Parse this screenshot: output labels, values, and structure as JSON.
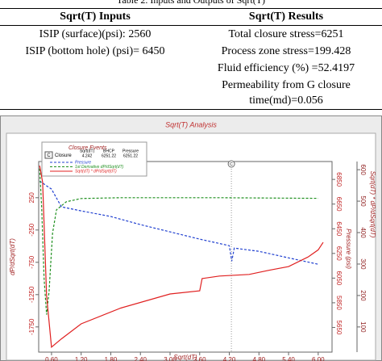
{
  "table": {
    "caption": "Table 2. Inputs and Outputs of Sqrt(T)",
    "headers": [
      "Sqrt(T) Inputs",
      "Sqrt(T) Results"
    ],
    "inputs": [
      "ISIP (surface)(psi): 2560",
      "ISIP (bottom hole) (psi)= 6450"
    ],
    "results": [
      "Total closure stress=6251",
      "Process zone stress=199.428",
      "Fluid efficiency (%) =52.4197",
      "Permeability from G closure time(md)=0.056"
    ]
  },
  "chart_data": {
    "type": "line",
    "title": "Sqrt(T) Analysis",
    "x_label": "Sqrt(dT)",
    "y_label": "dP/dSqrt(dT)",
    "y2_label": "Pressure (psi)",
    "y3_label": "Sqrt(dT) * dP/dSqrt(dT)",
    "xlim": [
      0.34,
      6.28
    ],
    "xticks": [
      {
        "value": 0.6,
        "label": "0.60"
      },
      {
        "value": 1.2,
        "label": "1.20"
      },
      {
        "value": 1.8,
        "label": "1.80"
      },
      {
        "value": 2.4,
        "label": "2.40"
      },
      {
        "value": 3.0,
        "label": "3.00"
      },
      {
        "value": 3.6,
        "label": "3.60"
      },
      {
        "value": 4.2,
        "label": "4.20"
      },
      {
        "value": 4.8,
        "label": "4.80"
      },
      {
        "value": 5.4,
        "label": "5.40"
      },
      {
        "value": 6.0,
        "label": "6.00"
      }
    ],
    "ylim": [
      -2140,
      810
    ],
    "yticks": [
      250,
      -250,
      -750,
      -1250,
      -1750
    ],
    "y2lim": [
      5450,
      6995
    ],
    "y2ticks": [
      6850,
      6650,
      6450,
      6250,
      6050,
      5850,
      5650
    ],
    "y3lim": [
      20,
      626
    ],
    "y3ticks": [
      600,
      500,
      400,
      300,
      200,
      100
    ],
    "closure_events": {
      "title": "Closure Events",
      "marker": "C",
      "name": "Closure",
      "columns": [
        "Sqrt(dT)",
        "BHCP",
        "Pressure"
      ],
      "values": [
        4.242,
        6251.22,
        6251.22
      ]
    },
    "series": [
      {
        "name": "Pressure",
        "color": "#2040d0",
        "axis": "y2",
        "x": [
          0.36,
          0.5,
          0.6,
          0.8,
          1.2,
          1.8,
          2.4,
          3.0,
          3.6,
          4.2,
          4.25,
          4.3,
          4.8,
          5.4,
          6.0
        ],
        "values": [
          6837,
          6798,
          6772,
          6628,
          6595,
          6549,
          6484,
          6425,
          6366,
          6313,
          6188,
          6293,
          6267,
          6214,
          6162
        ]
      },
      {
        "name": "1st Derivative dP/dSqrt(dT)",
        "color": "#209020",
        "axis": "y",
        "x": [
          0.36,
          0.4,
          0.45,
          0.5,
          0.55,
          0.62,
          0.7,
          0.9,
          1.2,
          2.0,
          3.0,
          4.0,
          5.0,
          6.0
        ],
        "values": [
          700,
          100,
          -1000,
          -1560,
          -1200,
          -300,
          62,
          188,
          238,
          250,
          250,
          250,
          245,
          240
        ]
      },
      {
        "name": "Sqrt(dT) * dP/dSqrt(dT)",
        "color": "#e02020",
        "axis": "y3",
        "x": [
          0.36,
          0.42,
          0.5,
          0.6,
          0.8,
          1.2,
          2.0,
          3.0,
          3.6,
          3.65,
          4.0,
          4.6,
          5.0,
          5.4,
          5.8,
          6.0,
          6.1
        ],
        "values": [
          613,
          560,
          200,
          36,
          62,
          110,
          160,
          205,
          215,
          254,
          262,
          267,
          280,
          292,
          323,
          345,
          369
        ]
      }
    ]
  }
}
